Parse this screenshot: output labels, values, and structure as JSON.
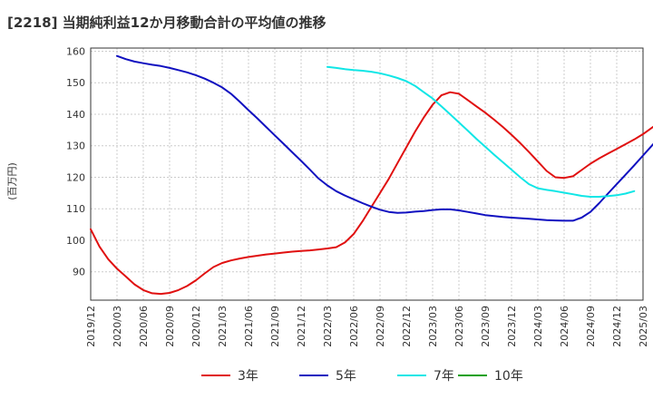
{
  "title": "[2218]  当期純利益12か月移動合計の平均値の推移",
  "chart_data": {
    "type": "line",
    "title": "[2218]  当期純利益12か月移動合計の平均値の推移",
    "xlabel": "",
    "ylabel": "(百万円)",
    "ylim": [
      81,
      161
    ],
    "yticks": [
      90,
      100,
      110,
      120,
      130,
      140,
      150,
      160
    ],
    "x_tick_labels": [
      "2019/12",
      "2020/03",
      "2020/06",
      "2020/09",
      "2020/12",
      "2021/03",
      "2021/06",
      "2021/09",
      "2021/12",
      "2022/03",
      "2022/06",
      "2022/09",
      "2022/12",
      "2023/03",
      "2023/06",
      "2023/09",
      "2023/12",
      "2024/03",
      "2024/06",
      "2024/09",
      "2024/12",
      "2025/03"
    ],
    "grid": true,
    "legend_position": "bottom",
    "series": [
      {
        "name": "3年",
        "color": "#e01010",
        "start": "2019/12",
        "values": [
          103.5,
          98,
          94,
          91,
          88.5,
          86,
          84.2,
          83.2,
          83,
          83.3,
          84.2,
          85.5,
          87.3,
          89.5,
          91.5,
          92.8,
          93.6,
          94.2,
          94.7,
          95.1,
          95.5,
          95.8,
          96.1,
          96.4,
          96.6,
          96.8,
          97.1,
          97.4,
          97.8,
          99.3,
          102,
          106,
          110.5,
          115,
          119.5,
          124.5,
          129.5,
          134.5,
          139,
          143,
          146,
          147,
          146.5,
          144.5,
          142.5,
          140.5,
          138.3,
          136,
          133.5,
          130.8,
          128,
          125,
          122,
          120,
          119.8,
          120.3,
          122.3,
          124.3,
          126,
          127.5,
          129,
          130.5,
          132,
          133.7,
          135.7,
          137.7,
          139
        ]
      },
      {
        "name": "5年",
        "color": "#1010c0",
        "start": "2020/03",
        "values": [
          158.5,
          157.5,
          156.7,
          156.2,
          155.7,
          155.3,
          154.7,
          154,
          153.3,
          152.4,
          151.3,
          150,
          148.5,
          146.5,
          144,
          141.3,
          138.7,
          136,
          133.3,
          130.6,
          127.9,
          125.2,
          122.4,
          119.6,
          117.4,
          115.6,
          114.2,
          113,
          111.8,
          110.7,
          109.7,
          109,
          108.7,
          108.8,
          109.1,
          109.3,
          109.6,
          109.8,
          109.8,
          109.5,
          109,
          108.5,
          108,
          107.7,
          107.4,
          107.2,
          107,
          106.8,
          106.6,
          106.4,
          106.3,
          106.2,
          106.2,
          107.2,
          109,
          111.8,
          114.8,
          117.8,
          120.8,
          123.8,
          126.9,
          130,
          133.1,
          136.2,
          139.5
        ]
      },
      {
        "name": "7年",
        "color": "#10e6e6",
        "start": "2022/03",
        "values": [
          155,
          154.7,
          154.3,
          154,
          153.8,
          153.5,
          153,
          152.3,
          151.5,
          150.5,
          149,
          147,
          145,
          142.5,
          140,
          137.4,
          134.8,
          132.2,
          129.7,
          127.2,
          124.8,
          122.4,
          120,
          117.8,
          116.5,
          116,
          115.6,
          115.1,
          114.6,
          114.1,
          113.8,
          113.8,
          114,
          114.3,
          114.8,
          115.6
        ]
      },
      {
        "name": "10年",
        "color": "#10a010",
        "start": "",
        "values": []
      }
    ]
  }
}
